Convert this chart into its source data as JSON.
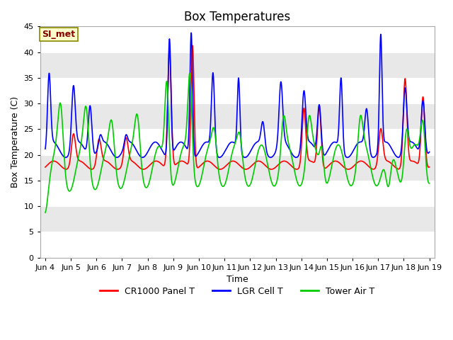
{
  "title": "Box Temperatures",
  "xlabel": "Time",
  "ylabel": "Box Temperature (C)",
  "ylim": [
    0,
    45
  ],
  "yticks": [
    0,
    5,
    10,
    15,
    20,
    25,
    30,
    35,
    40,
    45
  ],
  "xtick_labels": [
    "Jun 4",
    "Jun 5",
    "Jun 6",
    "Jun 7",
    "Jun 8",
    "Jun 9",
    "Jun 10",
    "Jun 11",
    "Jun 12",
    "Jun 13",
    "Jun 14",
    "Jun 15",
    "Jun 16",
    "Jun 17",
    "Jun 18",
    "Jun 19"
  ],
  "annotation_text": "SI_met",
  "annotation_box_color": "#FFFFCC",
  "annotation_border_color": "#888800",
  "annotation_text_color": "#880000",
  "legend_entries": [
    "CR1000 Panel T",
    "LGR Cell T",
    "Tower Air T"
  ],
  "line_colors": [
    "#FF0000",
    "#0000FF",
    "#00CC00"
  ],
  "line_width": 1.2,
  "plot_bg_color": "#E8E8E8",
  "stripe_color": "#FFFFFF",
  "title_fontsize": 12,
  "axis_label_fontsize": 9,
  "tick_fontsize": 8
}
